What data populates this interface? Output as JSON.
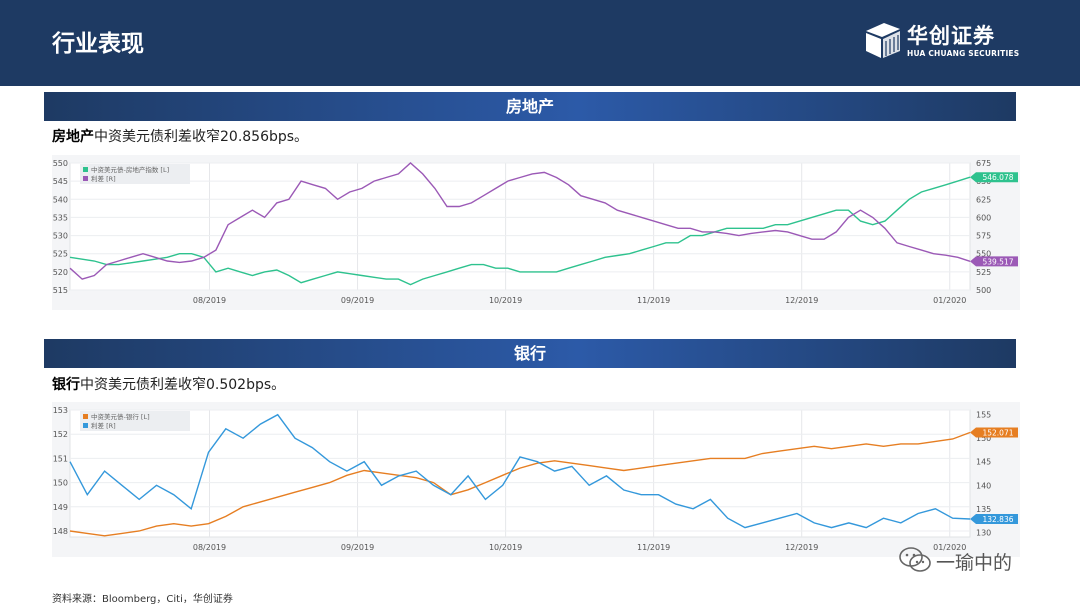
{
  "header": {
    "title": "行业表现",
    "logo_name": "华创证券",
    "logo_sub": "HUA CHUANG SECURITIES"
  },
  "sections": [
    {
      "band_title": "房地产",
      "caption_bold": "房地产",
      "caption_text": "中资美元债利差收窄20.856bps。"
    },
    {
      "band_title": "银行",
      "caption_bold": "银行",
      "caption_text": "中资美元债利差收窄0.502bps。"
    }
  ],
  "footer": {
    "source": "资料来源：Bloomberg，Citi，华创证券"
  },
  "watermark": {
    "text": "一瑜中的"
  },
  "colors": {
    "header_bg": "#1e3a63",
    "series_green": "#2ec28e",
    "series_purple": "#9b59b6",
    "series_orange": "#e67e22",
    "series_blue": "#3498db"
  },
  "chart_data": [
    {
      "type": "line",
      "title": "",
      "x_ticks": [
        "08/2019",
        "09/2019",
        "10/2019",
        "11/2019",
        "12/2019",
        "01/2020"
      ],
      "y_left": {
        "ticks": [
          515,
          520,
          525,
          530,
          535,
          540,
          545,
          550
        ],
        "range": [
          515,
          550
        ]
      },
      "y_right": {
        "ticks": [
          500,
          525,
          550,
          575,
          600,
          625,
          650,
          675
        ],
        "range": [
          500,
          675
        ]
      },
      "series": [
        {
          "name": "中资美元债-房地产指数 [L]",
          "axis": "left",
          "color": "#2ec28e",
          "last_label": "546.078",
          "values": [
            524,
            523.5,
            523,
            522,
            522,
            522.5,
            523,
            523.5,
            524,
            525,
            525,
            524,
            520,
            521,
            520,
            519,
            520,
            520.5,
            519,
            517,
            518,
            519,
            520,
            519.5,
            519,
            518.5,
            518,
            518,
            516.5,
            518,
            519,
            520,
            521,
            522,
            522,
            521,
            521,
            520,
            520,
            520,
            520,
            521,
            522,
            523,
            524,
            524.5,
            525,
            526,
            527,
            528,
            528,
            530,
            530,
            531,
            532,
            532,
            532,
            532,
            533,
            533,
            534,
            535,
            536,
            537,
            537,
            534,
            533,
            534,
            537,
            540,
            542,
            543,
            544,
            545,
            546.078
          ]
        },
        {
          "name": "利差 [R]",
          "axis": "right",
          "color": "#9b59b6",
          "last_label": "539.517",
          "values": [
            530,
            515,
            520,
            535,
            540,
            545,
            550,
            545,
            540,
            538,
            540,
            545,
            555,
            590,
            600,
            610,
            600,
            620,
            625,
            650,
            645,
            640,
            625,
            635,
            640,
            650,
            655,
            660,
            675,
            660,
            640,
            615,
            615,
            620,
            630,
            640,
            650,
            655,
            660,
            662,
            655,
            645,
            630,
            625,
            620,
            610,
            605,
            600,
            595,
            590,
            585,
            585,
            580,
            580,
            578,
            575,
            578,
            580,
            582,
            580,
            575,
            570,
            570,
            580,
            600,
            610,
            600,
            585,
            565,
            560,
            555,
            550,
            548,
            545,
            539.517
          ]
        }
      ]
    },
    {
      "type": "line",
      "title": "",
      "x_ticks": [
        "08/2019",
        "09/2019",
        "10/2019",
        "11/2019",
        "12/2019",
        "01/2020"
      ],
      "y_left": {
        "ticks": [
          148,
          149,
          150,
          151,
          152,
          153
        ],
        "range": [
          147.75,
          153
        ]
      },
      "y_right": {
        "ticks": [
          130,
          135,
          140,
          145,
          150,
          155
        ],
        "range": [
          129,
          156
        ]
      },
      "series": [
        {
          "name": "中资美元债-银行 [L]",
          "axis": "left",
          "color": "#e67e22",
          "last_label": "152.071",
          "values": [
            148,
            147.9,
            147.8,
            147.9,
            148,
            148.2,
            148.3,
            148.2,
            148.3,
            148.6,
            149,
            149.2,
            149.4,
            149.6,
            149.8,
            150,
            150.3,
            150.5,
            150.4,
            150.3,
            150.2,
            150,
            149.5,
            149.7,
            150,
            150.3,
            150.6,
            150.8,
            150.9,
            150.8,
            150.7,
            150.6,
            150.5,
            150.6,
            150.7,
            150.8,
            150.9,
            151,
            151,
            151,
            151.2,
            151.3,
            151.4,
            151.5,
            151.4,
            151.5,
            151.6,
            151.5,
            151.6,
            151.6,
            151.7,
            151.8,
            152.071
          ]
        },
        {
          "name": "利差 [R]",
          "axis": "right",
          "color": "#3498db",
          "last_label": "132.836",
          "values": [
            145,
            138,
            143,
            140,
            137,
            140,
            138,
            135,
            147,
            152,
            150,
            153,
            155,
            150,
            148,
            145,
            143,
            145,
            140,
            142,
            143,
            140,
            138,
            142,
            137,
            140,
            146,
            145,
            143,
            144,
            140,
            142,
            139,
            138,
            138,
            136,
            135,
            137,
            133,
            131,
            132,
            133,
            134,
            132,
            131,
            132,
            131,
            133,
            132,
            134,
            135,
            133,
            132.836
          ]
        }
      ]
    }
  ]
}
